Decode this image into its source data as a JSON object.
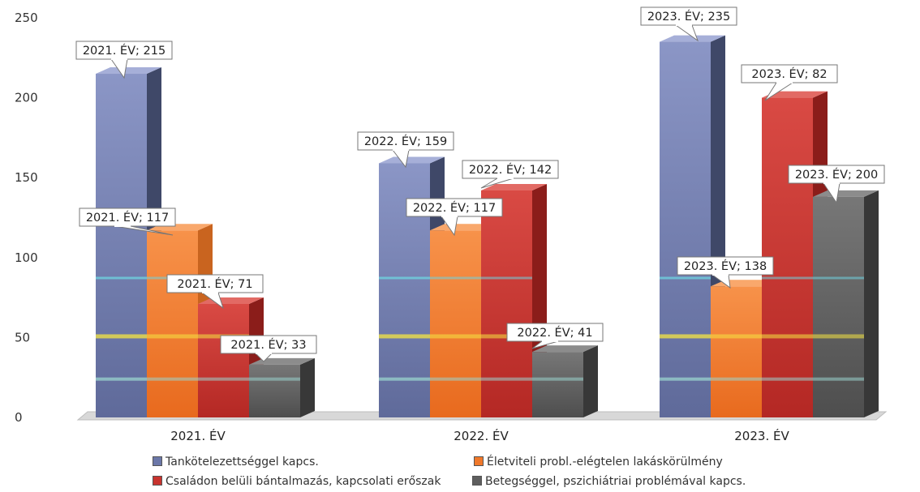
{
  "chart_data": {
    "type": "bar",
    "categories": [
      "2021. ÉV",
      "2022. ÉV",
      "2023. ÉV"
    ],
    "series": [
      {
        "name": "Tankötelezettséggel kapcs.",
        "values": [
          215,
          159,
          235
        ],
        "color": "#6b77a8"
      },
      {
        "name": "Életviteli probl.-elégtelen lakáskörülmény",
        "values": [
          117,
          117,
          82
        ],
        "color": "#f0782a"
      },
      {
        "name": "Családon belüli bántalmazás, kapcsolati erőszak",
        "values": [
          71,
          142,
          200
        ],
        "color": "#c8332e"
      },
      {
        "name": "Betegséggel, pszichiátriai problémával kapcs.",
        "values": [
          33,
          41,
          138
        ],
        "color": "#5e5e5e"
      }
    ],
    "data_labels": [
      [
        "2021. ÉV; 215",
        "2022. ÉV; 159",
        "2023. ÉV; 235"
      ],
      [
        "2021. ÉV; 117",
        "2022. ÉV; 117",
        "2023. ÉV; 82"
      ],
      [
        "2021. ÉV; 71",
        "2022. ÉV; 142",
        "2023. ÉV; 200"
      ],
      [
        "2021. ÉV; 33",
        "2022. ÉV; 41",
        "2023. ÉV; 138"
      ]
    ],
    "y_ticks": [
      "0",
      "50",
      "100",
      "150",
      "200",
      "250"
    ],
    "ylim": [
      0,
      250
    ],
    "title": "",
    "xlabel": "",
    "ylabel": "",
    "grid": false,
    "legend_position": "bottom"
  }
}
